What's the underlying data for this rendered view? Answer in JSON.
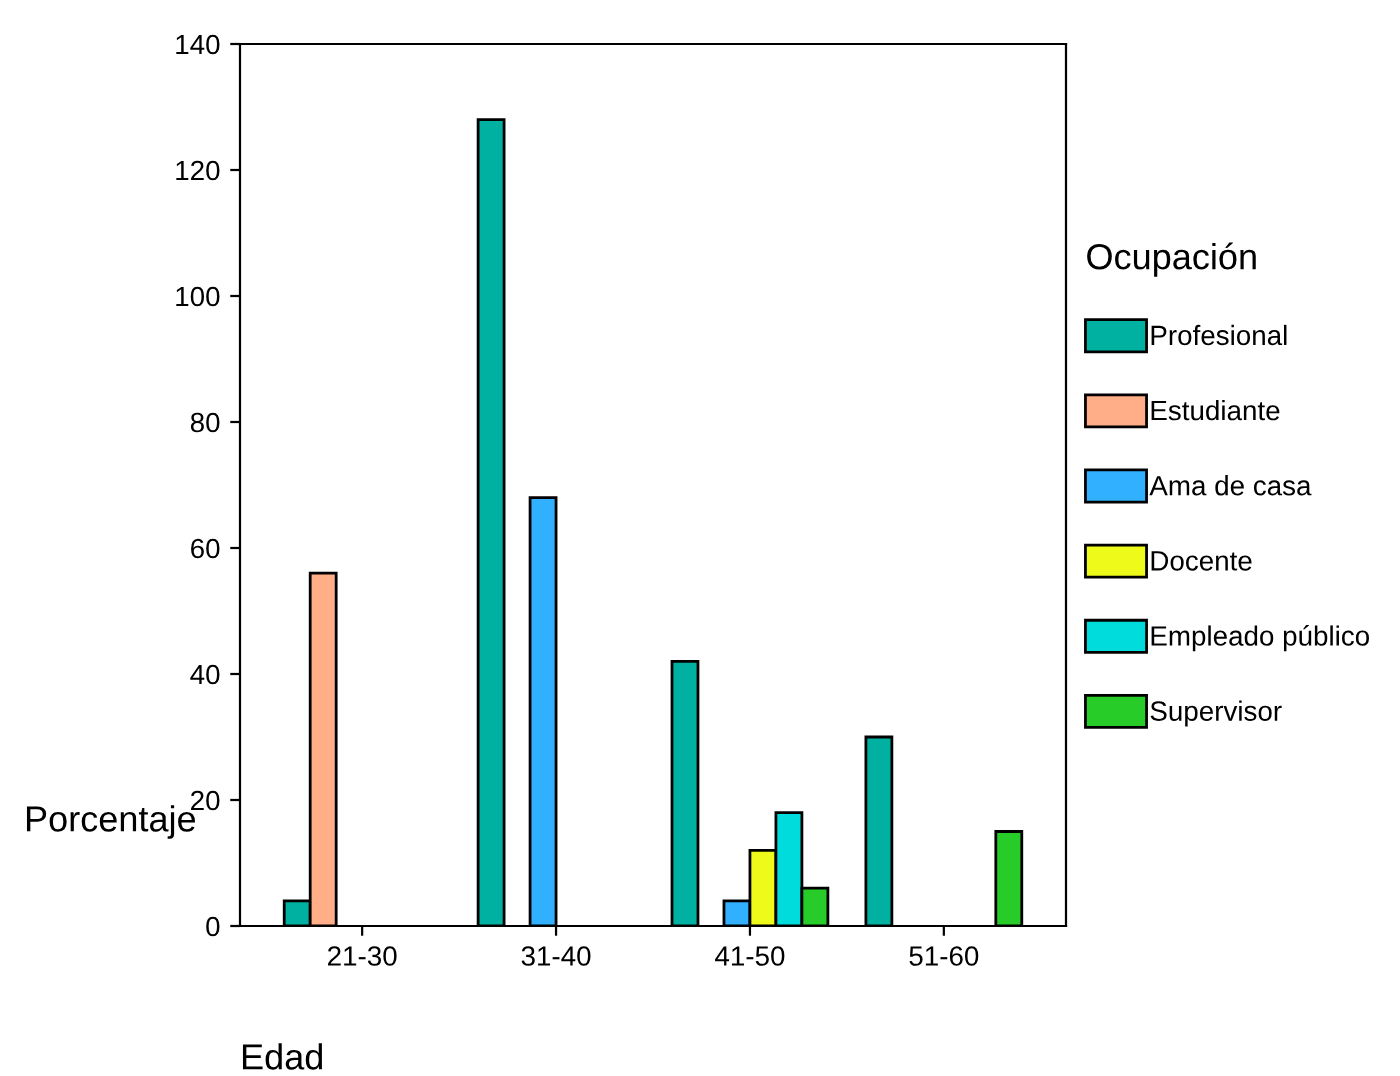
{
  "chart_data": {
    "type": "bar",
    "xlabel": "Edad",
    "ylabel": "Porcentaje",
    "legend_title": "Ocupación",
    "categories": [
      "21-30",
      "31-40",
      "41-50",
      "51-60"
    ],
    "series": [
      {
        "name": "Profesional",
        "color": "#00b0a0",
        "values": [
          4,
          128,
          42,
          30
        ]
      },
      {
        "name": "Estudiante",
        "color": "#ffae88",
        "values": [
          56,
          null,
          null,
          null
        ]
      },
      {
        "name": "Ama de casa",
        "color": "#30b0ff",
        "values": [
          null,
          68,
          4,
          null
        ]
      },
      {
        "name": "Docente",
        "color": "#eefa1a",
        "values": [
          null,
          null,
          12,
          null
        ]
      },
      {
        "name": "Empleado público",
        "color": "#00dcdc",
        "values": [
          null,
          null,
          18,
          null
        ]
      },
      {
        "name": "Supervisor",
        "color": "#28cc28",
        "values": [
          null,
          null,
          6,
          15
        ]
      }
    ],
    "ylim": [
      0,
      140
    ],
    "yticks": [
      0,
      20,
      40,
      60,
      80,
      100,
      120,
      140
    ],
    "grid": false,
    "legend": "right"
  }
}
